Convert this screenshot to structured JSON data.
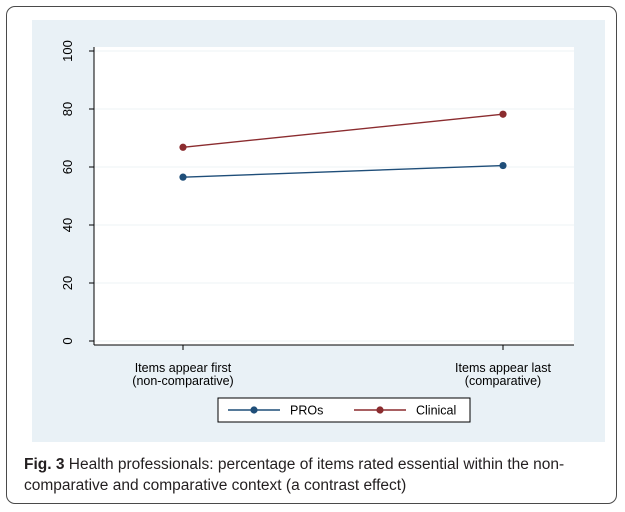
{
  "chart_data": {
    "type": "line",
    "categories": [
      "Items appear first\n(non-comparative)",
      "Items appear last\n(comparative)"
    ],
    "series": [
      {
        "name": "PROs",
        "values": [
          56.5,
          60.5
        ],
        "color": "#1f4e79"
      },
      {
        "name": "Clinical",
        "values": [
          66.8,
          78.2
        ],
        "color": "#8b2c2f"
      }
    ],
    "title": "",
    "xlabel": "",
    "ylabel": "",
    "ylim": [
      0,
      100
    ],
    "yticks": [
      0,
      20,
      40,
      60,
      80,
      100
    ],
    "grid": true,
    "legend": "bottom"
  },
  "caption": {
    "label": "Fig. 3",
    "text": " Health professionals: percentage of items rated essential within the non-comparative and comparative context (a contrast effect)"
  }
}
